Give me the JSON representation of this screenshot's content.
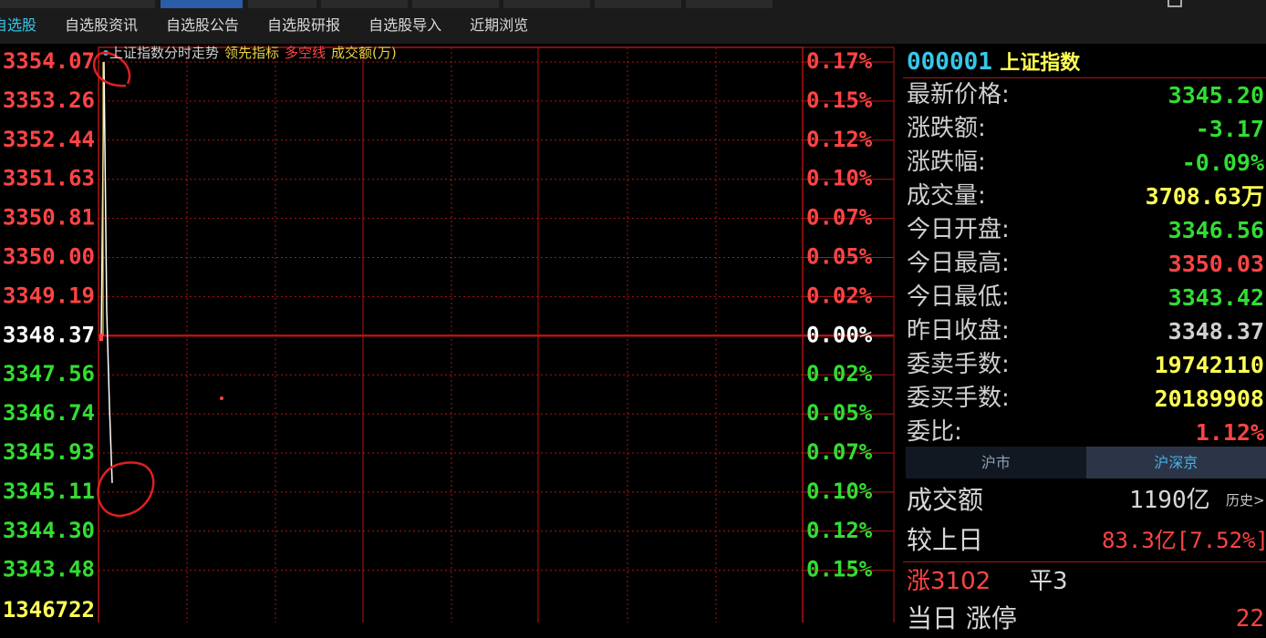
{
  "tabs": [
    {
      "label": "自选股",
      "active": true
    },
    {
      "label": "自选股资讯",
      "active": false
    },
    {
      "label": "自选股公告",
      "active": false
    },
    {
      "label": "自选股研报",
      "active": false
    },
    {
      "label": "自选股导入",
      "active": false
    },
    {
      "label": "近期浏览",
      "active": false
    }
  ],
  "chart": {
    "title": "上证指数分时走势",
    "indicator_lead": "领先指标",
    "indicator_longshort": "多空线",
    "indicator_amount": "成交额(万)",
    "prev_close": "3348.37",
    "left_labels_up": [
      "3354.07",
      "3353.26",
      "3352.44",
      "3351.63",
      "3350.81",
      "3350.00",
      "3349.19"
    ],
    "left_labels_down": [
      "3347.56",
      "3346.74",
      "3345.93",
      "3345.11",
      "3344.30",
      "3343.48"
    ],
    "right_labels_up": [
      "0.17%",
      "0.15%",
      "0.12%",
      "0.10%",
      "0.07%",
      "0.05%",
      "0.02%"
    ],
    "right_label_zero": "0.00%",
    "right_labels_down": [
      "0.02%",
      "0.05%",
      "0.07%",
      "0.10%",
      "0.12%",
      "0.15%"
    ],
    "volume_label": "1346722",
    "colors": {
      "up": "#ff4444",
      "down": "#33dd33",
      "grid": "#b01414",
      "zero": "#ffffff"
    }
  },
  "chart_data": {
    "type": "line",
    "title": "上证指数分时走势",
    "ylim": [
      3343.48,
      3354.07
    ],
    "prev_close": 3348.37,
    "series": [
      {
        "name": "",
        "points": [
          [
            0,
            3348.37
          ],
          [
            1,
            3354.07
          ],
          [
            2,
            3348.9
          ],
          [
            3,
            3346.9
          ],
          [
            4,
            3345.3
          ]
        ]
      }
    ]
  },
  "quote": {
    "code": "000001",
    "name": "上证指数",
    "rows": [
      {
        "label": "最新价格:",
        "value": "3345.20",
        "color": "#33dd33"
      },
      {
        "label": "涨跌额:",
        "value": "-3.17",
        "color": "#33dd33"
      },
      {
        "label": "涨跌幅:",
        "value": "-0.09%",
        "color": "#33dd33"
      },
      {
        "label": "成交量:",
        "value": "3708.63万",
        "color": "#ffff55"
      },
      {
        "label": "今日开盘:",
        "value": "3346.56",
        "color": "#33dd33"
      },
      {
        "label": "今日最高:",
        "value": "3350.03",
        "color": "#ff4444"
      },
      {
        "label": "今日最低:",
        "value": "3343.42",
        "color": "#33dd33"
      },
      {
        "label": "昨日收盘:",
        "value": "3348.37",
        "color": "#d0d0d0"
      },
      {
        "label": "委卖手数:",
        "value": "19742110",
        "color": "#ffff55"
      },
      {
        "label": "委买手数:",
        "value": "20189908",
        "color": "#ffff55"
      },
      {
        "label": "委比:",
        "value": "1.12%",
        "color": "#ff4444"
      }
    ]
  },
  "market": {
    "tabs": [
      {
        "label": "沪市",
        "active": false
      },
      {
        "label": "沪深京",
        "active": true
      }
    ],
    "turnover_label": "成交额",
    "turnover_value": "1190亿",
    "history_link": "历史>",
    "vs_prev_label": "较上日",
    "vs_prev_value": "83.3亿[7.52%]",
    "rise_text": "涨3102",
    "flat_text": "平3",
    "limit_text": "当日 涨停",
    "limit_value": "22"
  }
}
